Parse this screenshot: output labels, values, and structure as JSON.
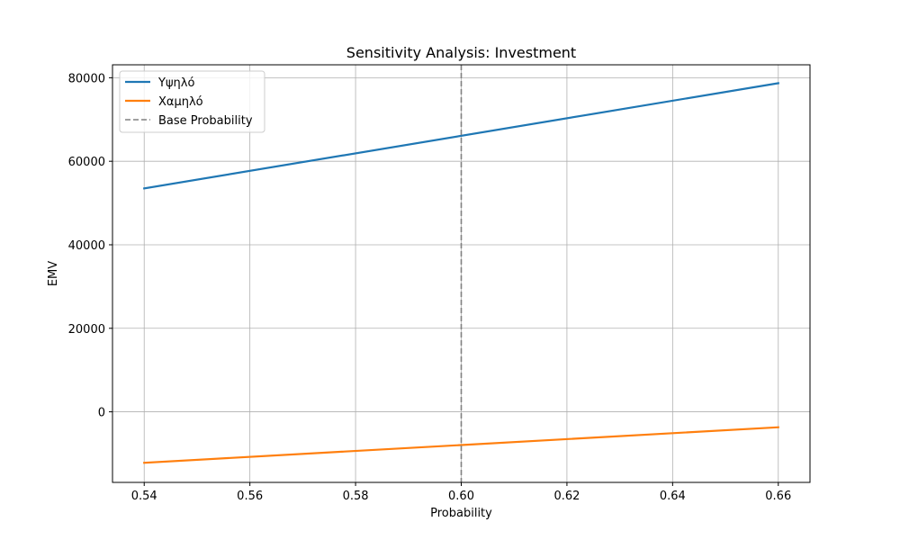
{
  "chart_data": {
    "type": "line",
    "title": "Sensitivity Analysis: Investment",
    "xlabel": "Probability",
    "ylabel": "EMV",
    "xlim": [
      0.534,
      0.666
    ],
    "ylim": [
      -16900,
      83100
    ],
    "xticks": [
      0.54,
      0.56,
      0.58,
      0.6,
      0.62,
      0.64,
      0.66
    ],
    "xtick_labels": [
      "0.54",
      "0.56",
      "0.58",
      "0.60",
      "0.62",
      "0.64",
      "0.66"
    ],
    "yticks": [
      0,
      20000,
      40000,
      60000,
      80000
    ],
    "ytick_labels": [
      "0",
      "20000",
      "40000",
      "60000",
      "80000"
    ],
    "grid": true,
    "legend_position": "top-left",
    "series": [
      {
        "name": "Υψηλό",
        "color": "#1f77b4",
        "style": "solid",
        "x": [
          0.54,
          0.66
        ],
        "y": [
          53500,
          78700
        ]
      },
      {
        "name": "Χαμηλό",
        "color": "#ff7f0e",
        "style": "solid",
        "x": [
          0.54,
          0.66
        ],
        "y": [
          -12200,
          -3700
        ]
      }
    ],
    "reference_line": {
      "name": "Base Probability",
      "color": "#808080",
      "style": "dashed",
      "x": 0.6
    }
  }
}
